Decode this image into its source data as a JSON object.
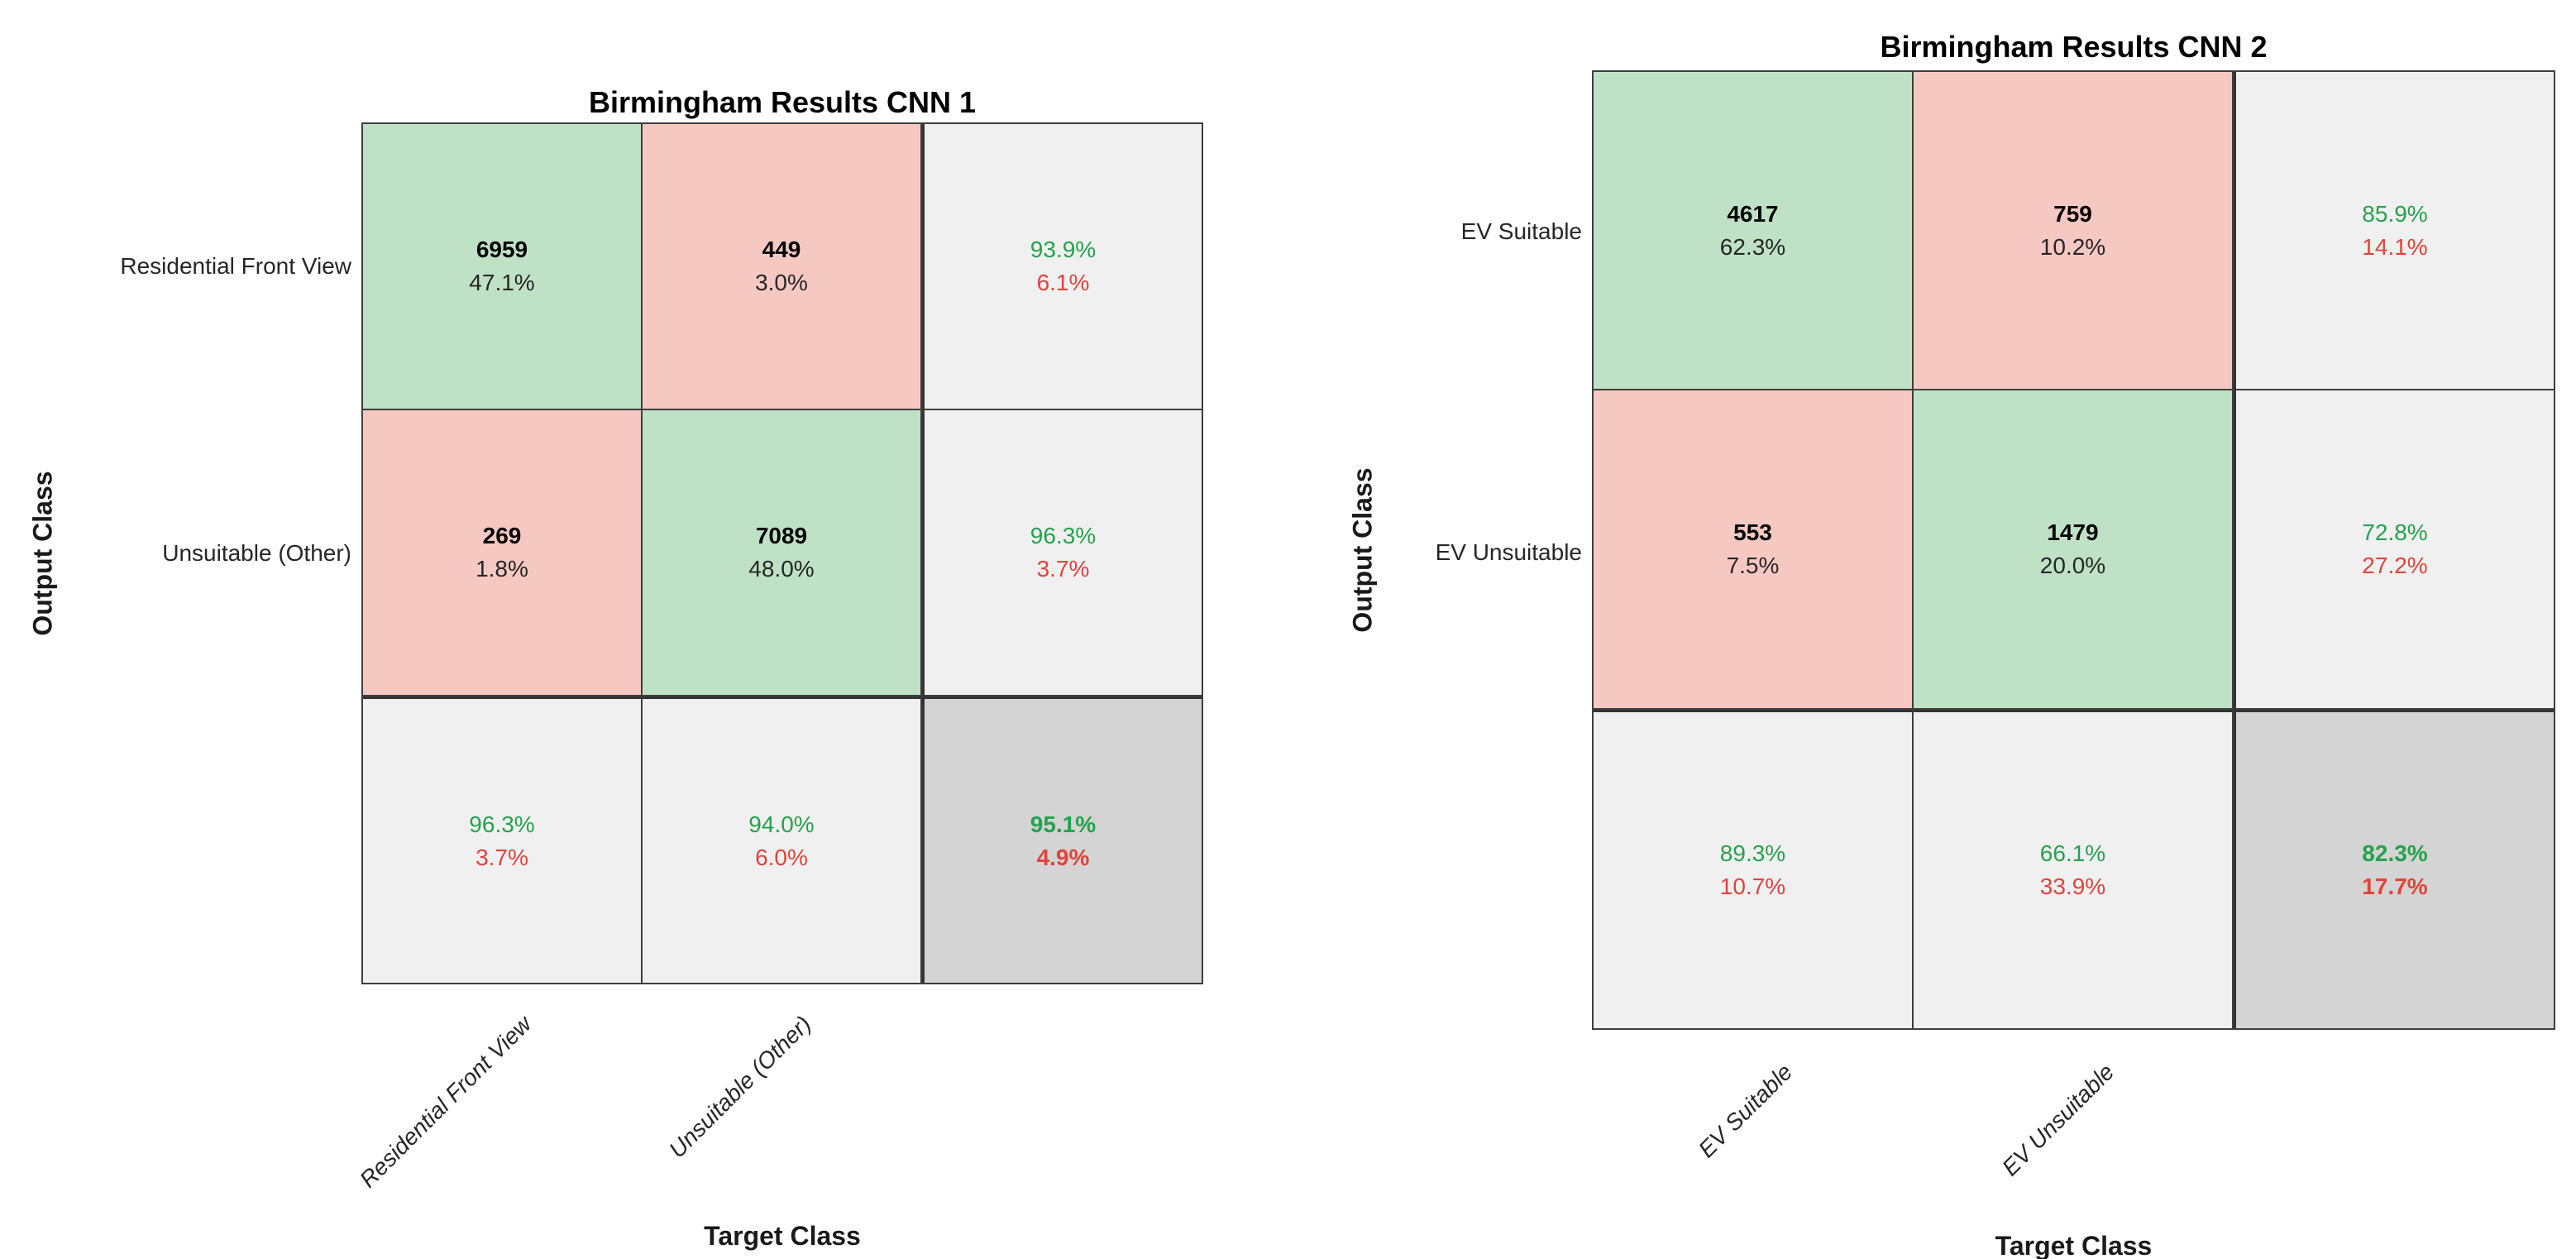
{
  "colors": {
    "background": "#FFFFFF",
    "cell_green": "#BFE2C6",
    "cell_red": "#F6C8C2",
    "cell_gray": "#F0F0F0",
    "cell_dark_gray": "#D4D4D4",
    "text_green": "#24A24C",
    "text_red": "#E0443A",
    "grid_line": "#3E3E3E",
    "grid_line_thick": "#333333",
    "count_text": "#000000",
    "pct_text": "#262626"
  },
  "chart_data": [
    {
      "type": "heatmap",
      "subtype": "confusion-matrix",
      "title": "Birmingham Results CNN 1",
      "xlabel": "Target Class",
      "ylabel": "Output Class",
      "classes": [
        "Residential Front View",
        "Unsuitable (Other)"
      ],
      "matrix": [
        [
          6959,
          449
        ],
        [
          269,
          7089
        ]
      ],
      "matrix_pct": [
        [
          "47.1%",
          "3.0%"
        ],
        [
          "1.8%",
          "48.0%"
        ]
      ],
      "row_summary": [
        [
          "93.9%",
          "6.1%"
        ],
        [
          "96.3%",
          "3.7%"
        ]
      ],
      "col_summary": [
        [
          "96.3%",
          "3.7%"
        ],
        [
          "94.0%",
          "6.0%"
        ]
      ],
      "overall": [
        "95.1%",
        "4.9%"
      ],
      "legend_position": "none",
      "grid": true
    },
    {
      "type": "heatmap",
      "subtype": "confusion-matrix",
      "title": "Birmingham Results CNN 2",
      "xlabel": "Target Class",
      "ylabel": "Output Class",
      "classes": [
        "EV Suitable",
        "EV Unsuitable"
      ],
      "matrix": [
        [
          4617,
          759
        ],
        [
          553,
          1479
        ]
      ],
      "matrix_pct": [
        [
          "62.3%",
          "10.2%"
        ],
        [
          "7.5%",
          "20.0%"
        ]
      ],
      "row_summary": [
        [
          "85.9%",
          "14.1%"
        ],
        [
          "72.8%",
          "27.2%"
        ]
      ],
      "col_summary": [
        [
          "89.3%",
          "10.7%"
        ],
        [
          "66.1%",
          "33.9%"
        ]
      ],
      "overall": [
        "82.3%",
        "17.7%"
      ],
      "legend_position": "none",
      "grid": true
    }
  ]
}
